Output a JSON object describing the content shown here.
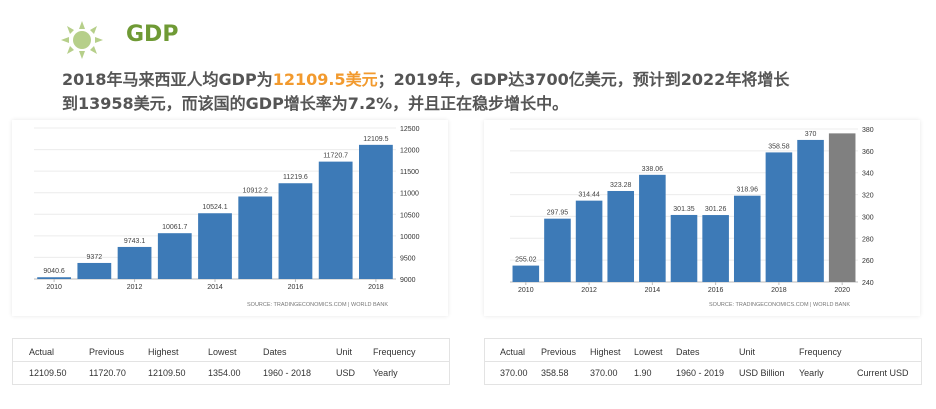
{
  "header": {
    "title": "GDP",
    "line1_a": "2018年马来西亚人均GDP为",
    "line1_highlight": "12109.5美元",
    "line1_b": "；2019年，GDP达3700亿美元，预计到2022年将增长",
    "line2": "到13958美元，而该国的GDP增长率为7.2%，并且正在稳步增长中。"
  },
  "colors": {
    "title": "#6f9a35",
    "highlight": "#f29a2e",
    "bar": "#3d7ab7",
    "bar_forecast": "#808080"
  },
  "icons": {
    "header_icon": "sun-icon"
  },
  "chart_data": [
    {
      "type": "bar",
      "categories": [
        "2010",
        "2011",
        "2012",
        "2013",
        "2014",
        "2015",
        "2016",
        "2017",
        "2018"
      ],
      "x_tick_labels": [
        "2010",
        "",
        "2012",
        "",
        "2014",
        "",
        "2016",
        "",
        "2018"
      ],
      "values": [
        9040.6,
        9372,
        9743.1,
        10061.7,
        10524.1,
        10912.2,
        11219.6,
        11720.7,
        12109.5
      ],
      "data_labels": [
        "9040.6",
        "9372",
        "9743.1",
        "10061.7",
        "10524.1",
        "10912.2",
        "11219.6",
        "11720.7",
        "12109.5"
      ],
      "ylim": [
        9000,
        12500
      ],
      "y_ticks": [
        9000,
        9500,
        10000,
        10500,
        11000,
        11500,
        12000,
        12500
      ],
      "y_axis_position": "right",
      "grid": true,
      "source": "SOURCE: TRADINGECONOMICS.COM  |  WORLD BANK"
    },
    {
      "type": "bar",
      "categories": [
        "2010",
        "2011",
        "2012",
        "2013",
        "2014",
        "2015",
        "2016",
        "2017",
        "2018",
        "2019",
        "2020"
      ],
      "x_tick_labels": [
        "2010",
        "",
        "2012",
        "",
        "2014",
        "",
        "2016",
        "",
        "2018",
        "",
        "2020"
      ],
      "values": [
        255.02,
        297.95,
        314.44,
        323.28,
        338.06,
        301.35,
        301.26,
        318.96,
        358.58,
        370,
        376
      ],
      "data_labels": [
        "255.02",
        "297.95",
        "314.44",
        "323.28",
        "338.06",
        "301.35",
        "301.26",
        "318.96",
        "358.58",
        "370",
        ""
      ],
      "forecast_index": 10,
      "ylim": [
        240,
        380
      ],
      "y_ticks": [
        240,
        260,
        280,
        300,
        320,
        340,
        360,
        380
      ],
      "y_axis_position": "right",
      "grid": true,
      "source": "SOURCE: TRADINGECONOMICS.COM  |  WORLD BANK"
    }
  ],
  "stats_left": {
    "headers": [
      "Actual",
      "Previous",
      "Highest",
      "Lowest",
      "Dates",
      "Unit",
      "Frequency"
    ],
    "values": [
      "12109.50",
      "11720.70",
      "12109.50",
      "1354.00",
      "1960 - 2018",
      "USD",
      "Yearly"
    ]
  },
  "stats_right": {
    "headers": [
      "Actual",
      "Previous",
      "Highest",
      "Lowest",
      "Dates",
      "Unit",
      "Frequency"
    ],
    "values": [
      "370.00",
      "358.58",
      "370.00",
      "1.90",
      "1960 - 2019",
      "USD Billion",
      "Yearly",
      "Current USD"
    ]
  }
}
